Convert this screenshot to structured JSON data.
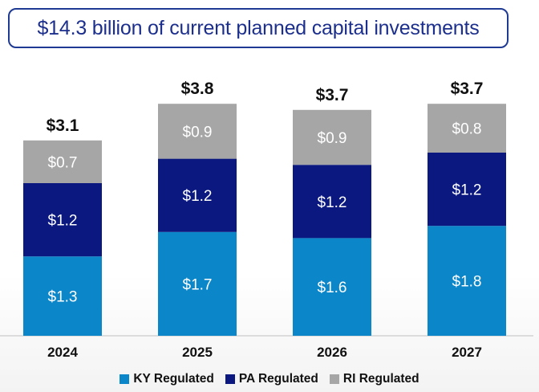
{
  "title": "$14.3 billion of current planned capital investments",
  "chart_data": {
    "type": "bar",
    "stacked": true,
    "categories": [
      "2024",
      "2025",
      "2026",
      "2027"
    ],
    "series": [
      {
        "name": "KY Regulated",
        "values": [
          1.3,
          1.7,
          1.6,
          1.8
        ],
        "labels": [
          "$1.3",
          "$1.7",
          "$1.6",
          "$1.8"
        ],
        "color": "#0b86c8"
      },
      {
        "name": "PA Regulated",
        "values": [
          1.2,
          1.2,
          1.2,
          1.2
        ],
        "labels": [
          "$1.2",
          "$1.2",
          "$1.2",
          "$1.2"
        ],
        "color": "#0a1880"
      },
      {
        "name": "RI Regulated",
        "values": [
          0.7,
          0.9,
          0.9,
          0.8
        ],
        "labels": [
          "$0.7",
          "$0.9",
          "$0.9",
          "$0.8"
        ],
        "color": "#a6a6a6"
      }
    ],
    "totals": [
      3.1,
      3.8,
      3.7,
      3.7
    ],
    "total_labels": [
      "$3.1",
      "$3.8",
      "$3.7",
      "$3.7"
    ],
    "legend_position": "bottom",
    "grid": false
  }
}
